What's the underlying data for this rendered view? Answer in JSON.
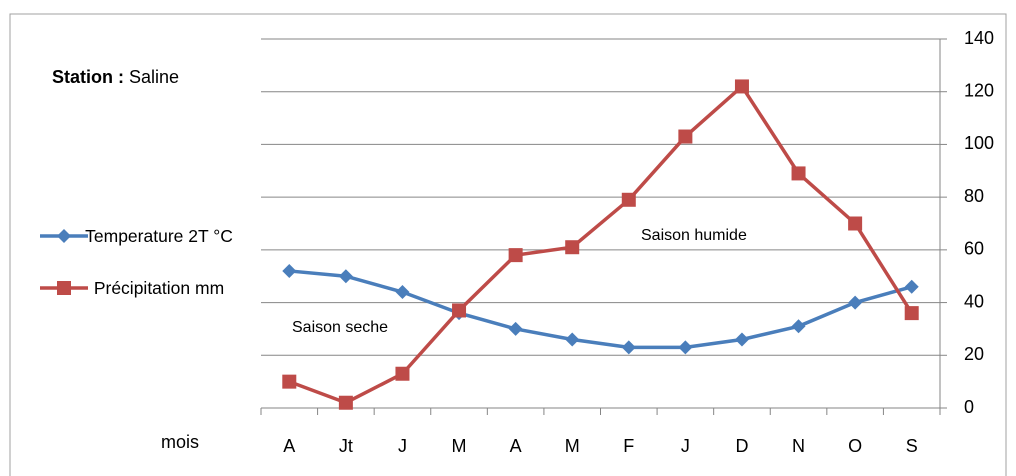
{
  "chart_data": {
    "type": "line",
    "title_label": "Station :",
    "title_value": "Saline",
    "x_label": "mois",
    "annotations": [
      "Saison seche",
      "Saison humide"
    ],
    "categories": [
      "A",
      "Jt",
      "J",
      "M",
      "A",
      "M",
      "F",
      "J",
      "D",
      "N",
      "O",
      "S"
    ],
    "series": [
      {
        "name": "Temperature 2T °C",
        "color": "#4a7ebb",
        "marker": "diamond",
        "values": [
          52,
          50,
          44,
          36,
          30,
          26,
          23,
          23,
          26,
          31,
          40,
          46
        ]
      },
      {
        "name": "Précipitation mm",
        "color": "#be4b48",
        "marker": "square",
        "values": [
          10,
          2,
          13,
          37,
          58,
          61,
          79,
          103,
          122,
          89,
          70,
          36
        ]
      }
    ],
    "ylim": [
      0,
      140
    ],
    "yticks": [
      0,
      20,
      40,
      60,
      80,
      100,
      120,
      140
    ],
    "y_axis_side": "right",
    "grid": true,
    "legend": "left"
  }
}
